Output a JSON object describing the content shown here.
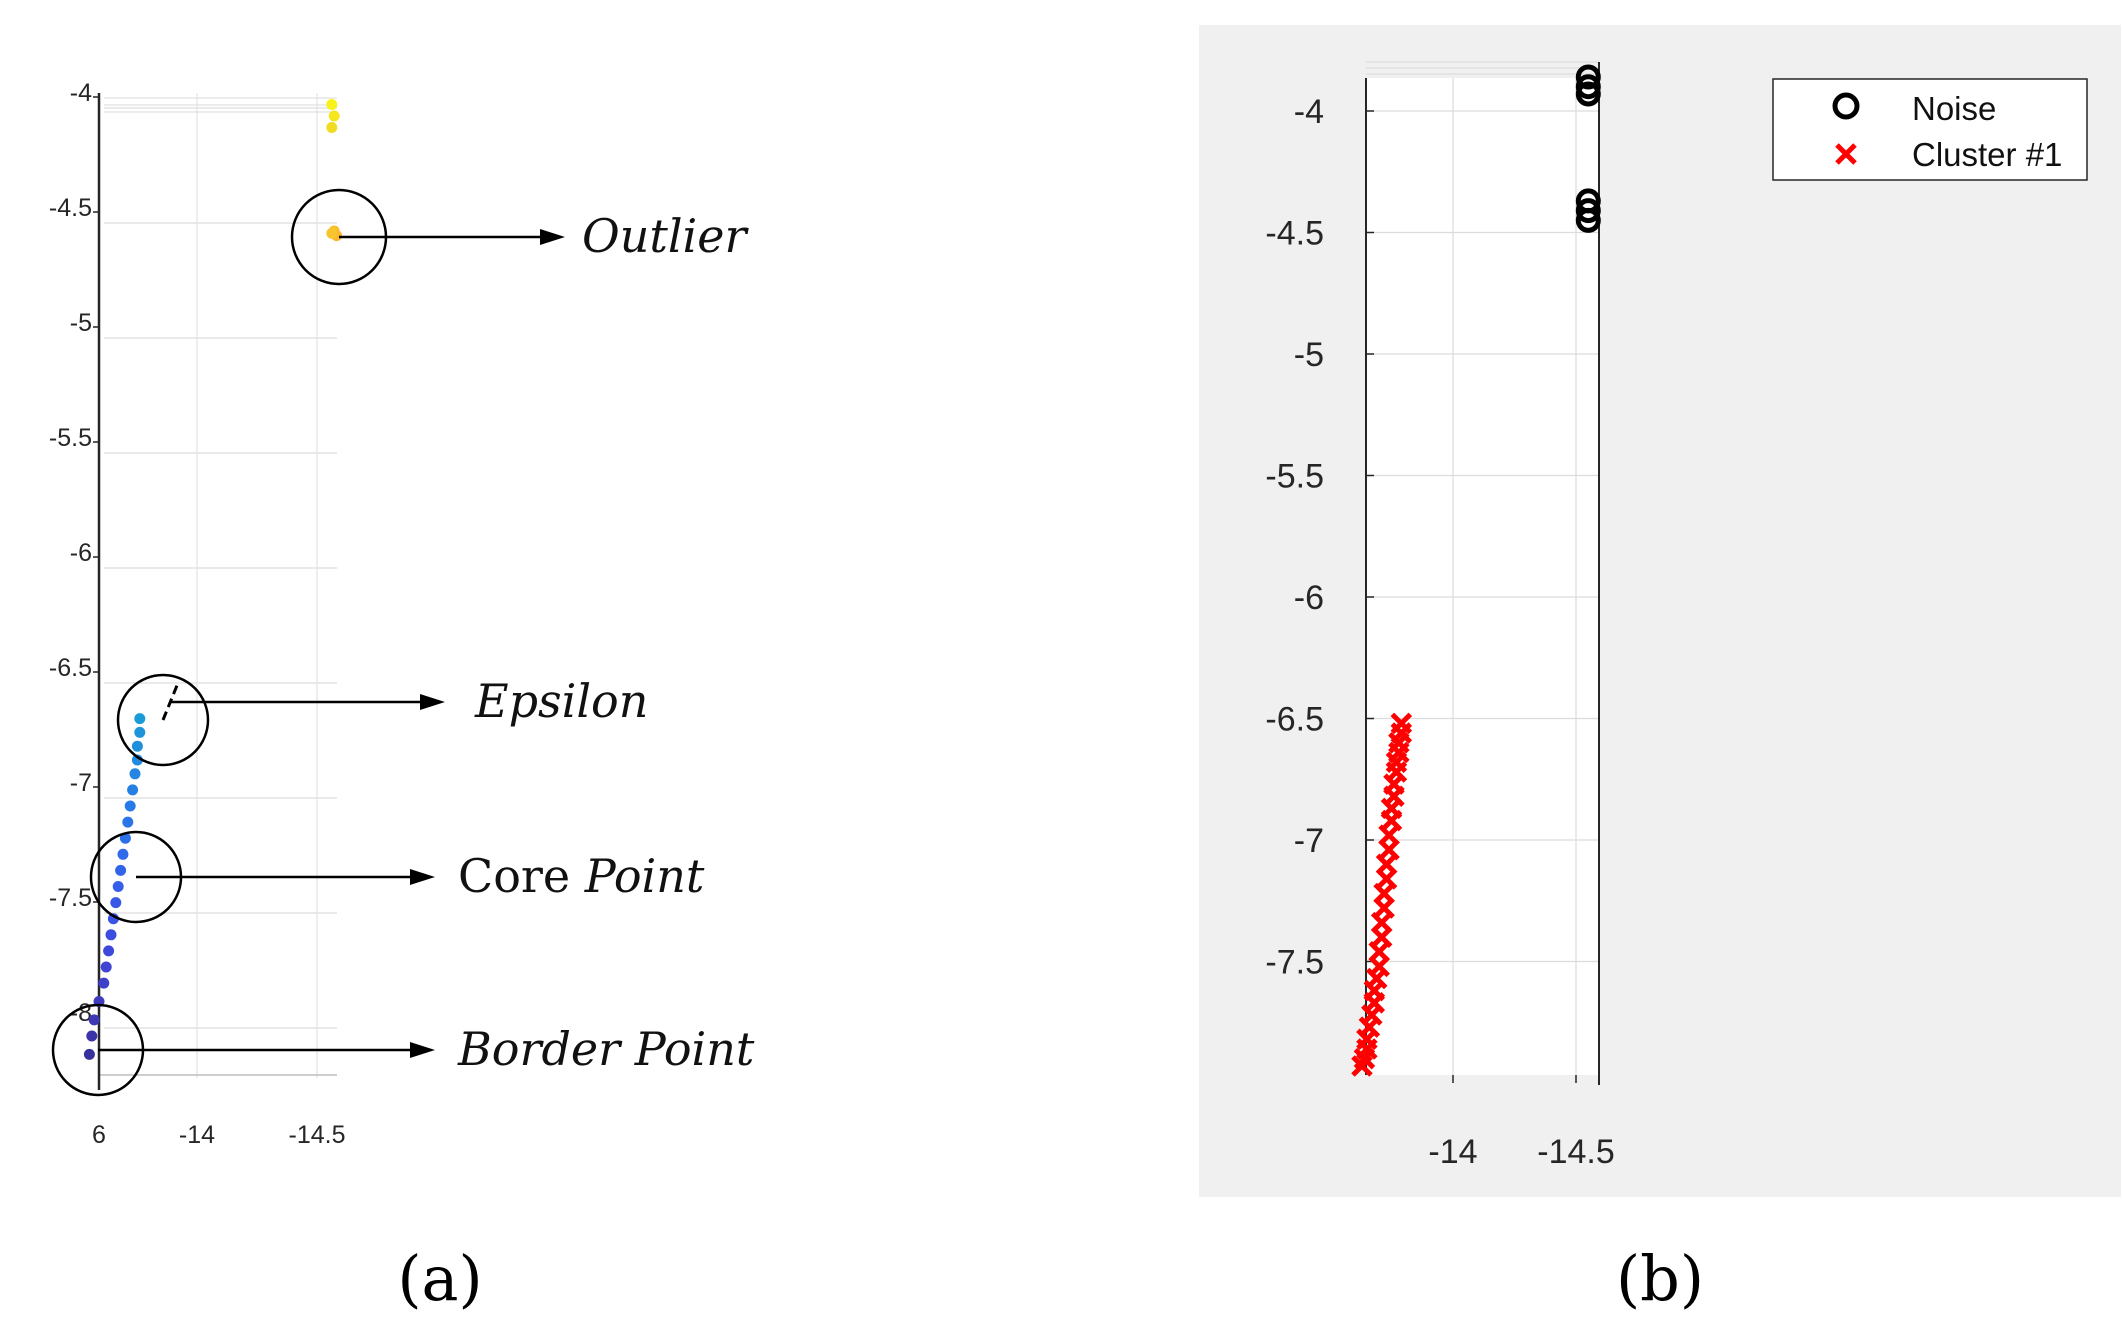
{
  "panel_labels": {
    "a": "(a)",
    "b": "(b)"
  },
  "annotations": {
    "outlier": "Outlier",
    "epsilon": "Epsilon",
    "core_plain": "Core",
    "core_italic": "Point",
    "border": "Border Point"
  },
  "colors": {
    "panel_b_background": "#f0f0f0",
    "noise_marker": "#000000",
    "cluster_marker": "#ff0000",
    "grid": "#d9d9d9",
    "axis": "#262626"
  },
  "chart_data": [
    {
      "panel": "a",
      "type": "scatter",
      "title": "",
      "xlabel": "",
      "ylabel": "",
      "x_ticks": [
        "6",
        "-14",
        "-14.5"
      ],
      "y_ticks": [
        "-4",
        "-4.5",
        "-5",
        "-5.5",
        "-6",
        "-6.5",
        "-7",
        "-7.5",
        "-8"
      ],
      "ylim": [
        -8.3,
        -3.95
      ],
      "xlim": [
        -13.6,
        -14.6
      ],
      "grid": true,
      "colormap": "parula",
      "points": [
        {
          "x": -14.57,
          "y": -4.05,
          "color": "#f9f21a"
        },
        {
          "x": -14.58,
          "y": -4.1,
          "color": "#f5e61e"
        },
        {
          "x": -14.57,
          "y": -4.15,
          "color": "#f0dc22"
        },
        {
          "x": -14.58,
          "y": -4.6,
          "color": "#fbbf2b"
        },
        {
          "x": -14.59,
          "y": -4.62,
          "color": "#fcb72e"
        },
        {
          "x": -14.57,
          "y": -4.61,
          "color": "#f8c530"
        },
        {
          "x": -13.77,
          "y": -6.72,
          "color": "#1b9ad8"
        },
        {
          "x": -13.77,
          "y": -6.78,
          "color": "#1e95db"
        },
        {
          "x": -13.76,
          "y": -6.84,
          "color": "#2090dd"
        },
        {
          "x": -13.76,
          "y": -6.9,
          "color": "#228ae0"
        },
        {
          "x": -13.75,
          "y": -6.96,
          "color": "#2485e2"
        },
        {
          "x": -13.74,
          "y": -7.03,
          "color": "#2680e4"
        },
        {
          "x": -13.73,
          "y": -7.1,
          "color": "#287be6"
        },
        {
          "x": -13.72,
          "y": -7.17,
          "color": "#2a75e8"
        },
        {
          "x": -13.71,
          "y": -7.24,
          "color": "#2c70e9"
        },
        {
          "x": -13.7,
          "y": -7.31,
          "color": "#2f6aea"
        },
        {
          "x": -13.69,
          "y": -7.38,
          "color": "#3264ea"
        },
        {
          "x": -13.68,
          "y": -7.45,
          "color": "#355eea"
        },
        {
          "x": -13.67,
          "y": -7.52,
          "color": "#3858e8"
        },
        {
          "x": -13.66,
          "y": -7.59,
          "color": "#3a53e4"
        },
        {
          "x": -13.65,
          "y": -7.66,
          "color": "#3c4ee0"
        },
        {
          "x": -13.64,
          "y": -7.73,
          "color": "#3e49da"
        },
        {
          "x": -13.63,
          "y": -7.8,
          "color": "#3f44d2"
        },
        {
          "x": -13.62,
          "y": -7.87,
          "color": "#3f40ca"
        },
        {
          "x": -13.6,
          "y": -7.95,
          "color": "#3f3cc0"
        },
        {
          "x": -13.58,
          "y": -8.03,
          "color": "#3d38b4"
        },
        {
          "x": -13.57,
          "y": -8.1,
          "color": "#3b33a8"
        },
        {
          "x": -13.56,
          "y": -8.18,
          "color": "#38309c"
        }
      ]
    },
    {
      "panel": "b",
      "type": "scatter",
      "title": "",
      "xlabel": "",
      "ylabel": "",
      "x_ticks": [
        "-14",
        "-14.5"
      ],
      "y_ticks": [
        "-4",
        "-4.5",
        "-5",
        "-5.5",
        "-6",
        "-6.5",
        "-7",
        "-7.5"
      ],
      "ylim": [
        -7.95,
        -3.8
      ],
      "xlim": [
        -13.62,
        -14.55
      ],
      "grid": true,
      "legend_position": "top-right",
      "series": [
        {
          "name": "Noise",
          "marker": "o",
          "color": "#000000",
          "points": [
            {
              "x": -14.55,
              "y": -3.86
            },
            {
              "x": -14.55,
              "y": -3.9
            },
            {
              "x": -14.55,
              "y": -3.93
            },
            {
              "x": -14.55,
              "y": -4.37
            },
            {
              "x": -14.55,
              "y": -4.41
            },
            {
              "x": -14.55,
              "y": -4.45
            }
          ]
        },
        {
          "name": "Cluster #1",
          "marker": "x",
          "color": "#ff0000",
          "points": [
            {
              "x": -13.79,
              "y": -6.52
            },
            {
              "x": -13.79,
              "y": -6.56
            },
            {
              "x": -13.78,
              "y": -6.6
            },
            {
              "x": -13.78,
              "y": -6.64
            },
            {
              "x": -13.77,
              "y": -6.68
            },
            {
              "x": -13.77,
              "y": -6.72
            },
            {
              "x": -13.76,
              "y": -6.77
            },
            {
              "x": -13.76,
              "y": -6.82
            },
            {
              "x": -13.75,
              "y": -6.87
            },
            {
              "x": -13.75,
              "y": -6.92
            },
            {
              "x": -13.74,
              "y": -6.98
            },
            {
              "x": -13.74,
              "y": -7.04
            },
            {
              "x": -13.73,
              "y": -7.1
            },
            {
              "x": -13.73,
              "y": -7.16
            },
            {
              "x": -13.72,
              "y": -7.22
            },
            {
              "x": -13.72,
              "y": -7.28
            },
            {
              "x": -13.71,
              "y": -7.34
            },
            {
              "x": -13.71,
              "y": -7.4
            },
            {
              "x": -13.7,
              "y": -7.46
            },
            {
              "x": -13.7,
              "y": -7.52
            },
            {
              "x": -13.69,
              "y": -7.57
            },
            {
              "x": -13.68,
              "y": -7.62
            },
            {
              "x": -13.68,
              "y": -7.67
            },
            {
              "x": -13.67,
              "y": -7.72
            },
            {
              "x": -13.66,
              "y": -7.77
            },
            {
              "x": -13.65,
              "y": -7.82
            },
            {
              "x": -13.65,
              "y": -7.86
            },
            {
              "x": -13.64,
              "y": -7.9
            },
            {
              "x": -13.63,
              "y": -7.93
            }
          ]
        }
      ]
    }
  ]
}
